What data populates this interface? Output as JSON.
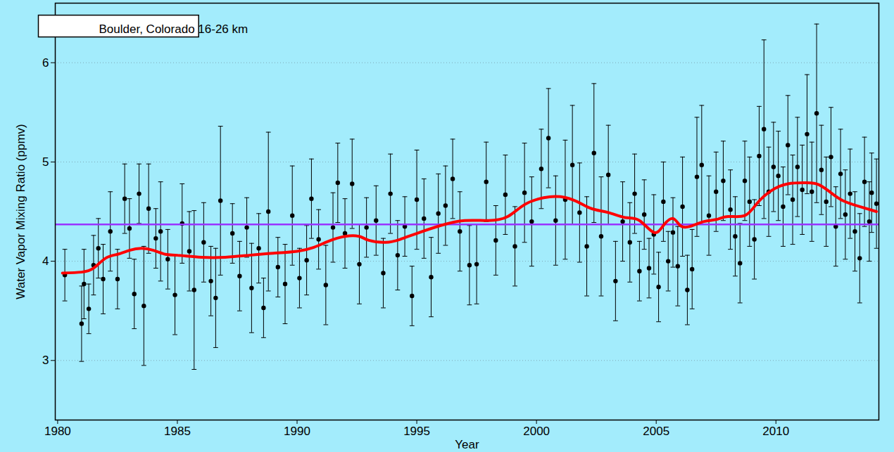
{
  "chart_data": {
    "type": "scatter",
    "title": "Boulder, Colorado 16-26 km",
    "x_label": "Year",
    "y_label": "Water Vapor Mixing Ratio (ppmv)",
    "xlim": [
      1979.9,
      2014.3
    ],
    "xticks": [
      1980,
      1985,
      1990,
      1995,
      2000,
      2005,
      2010
    ],
    "ylim": [
      2.4,
      6.6
    ],
    "yticks": [
      3,
      4,
      5,
      6
    ],
    "grid": true,
    "color": "#000000",
    "marker": "circle",
    "x": [
      1980.3,
      1981.0,
      1981.1,
      1981.3,
      1981.5,
      1981.7,
      1981.9,
      1982.2,
      1982.5,
      1982.8,
      1983.0,
      1983.2,
      1983.4,
      1983.6,
      1983.8,
      1984.1,
      1984.3,
      1984.6,
      1984.9,
      1985.2,
      1985.5,
      1985.7,
      1986.1,
      1986.4,
      1986.6,
      1986.8,
      1987.3,
      1987.6,
      1987.9,
      1988.1,
      1988.4,
      1988.6,
      1988.8,
      1989.2,
      1989.5,
      1989.8,
      1990.1,
      1990.4,
      1990.6,
      1990.9,
      1991.2,
      1991.5,
      1991.7,
      1992.0,
      1992.3,
      1992.6,
      1992.9,
      1993.3,
      1993.6,
      1993.9,
      1994.2,
      1994.5,
      1994.8,
      1995.0,
      1995.3,
      1995.6,
      1995.9,
      1996.2,
      1996.5,
      1996.8,
      1997.2,
      1997.5,
      1997.9,
      1998.3,
      1998.7,
      1999.1,
      1999.5,
      1999.8,
      2000.2,
      2000.5,
      2000.8,
      2001.2,
      2001.5,
      2001.8,
      2002.1,
      2002.4,
      2002.7,
      2003.0,
      2003.3,
      2003.6,
      2003.9,
      2004.1,
      2004.3,
      2004.5,
      2004.7,
      2004.9,
      2005.1,
      2005.3,
      2005.5,
      2005.7,
      2005.9,
      2006.1,
      2006.3,
      2006.5,
      2006.7,
      2006.9,
      2007.2,
      2007.5,
      2007.8,
      2008.1,
      2008.3,
      2008.5,
      2008.7,
      2008.9,
      2009.1,
      2009.3,
      2009.5,
      2009.7,
      2009.9,
      2010.1,
      2010.3,
      2010.5,
      2010.7,
      2010.9,
      2011.1,
      2011.3,
      2011.5,
      2011.7,
      2011.9,
      2012.1,
      2012.3,
      2012.5,
      2012.7,
      2012.9,
      2013.1,
      2013.3,
      2013.5,
      2013.7,
      2013.9,
      2014.0,
      2014.2
    ],
    "values": [
      3.86,
      3.37,
      3.77,
      3.52,
      3.96,
      4.13,
      3.82,
      4.3,
      3.82,
      4.63,
      4.33,
      3.67,
      4.68,
      3.55,
      4.53,
      4.23,
      4.3,
      4.02,
      3.66,
      4.38,
      4.1,
      3.71,
      4.19,
      3.8,
      3.63,
      4.61,
      4.28,
      3.85,
      4.34,
      3.73,
      4.13,
      3.53,
      4.5,
      3.94,
      3.77,
      4.46,
      3.83,
      4.01,
      4.63,
      4.22,
      3.76,
      4.34,
      4.79,
      4.28,
      4.78,
      3.97,
      4.34,
      4.41,
      3.88,
      4.68,
      4.06,
      4.35,
      3.65,
      4.62,
      4.43,
      3.84,
      4.48,
      4.56,
      4.83,
      4.3,
      3.96,
      3.97,
      4.8,
      4.21,
      4.67,
      4.15,
      4.69,
      4.4,
      4.93,
      5.24,
      4.41,
      4.62,
      4.97,
      4.49,
      4.15,
      5.09,
      4.25,
      4.87,
      3.8,
      4.4,
      4.19,
      4.68,
      3.9,
      4.47,
      3.93,
      4.27,
      3.74,
      4.6,
      4.0,
      4.29,
      3.95,
      4.55,
      3.71,
      3.92,
      4.85,
      4.97,
      4.46,
      4.7,
      4.81,
      4.52,
      4.25,
      3.98,
      4.81,
      4.6,
      4.22,
      5.06,
      5.33,
      4.7,
      4.95,
      4.86,
      4.55,
      5.17,
      4.62,
      4.95,
      4.72,
      5.28,
      4.7,
      5.49,
      4.92,
      4.6,
      5.05,
      4.35,
      4.88,
      4.47,
      4.68,
      4.3,
      4.03,
      4.8,
      4.4,
      4.69,
      4.58
    ],
    "error": [
      0.26,
      0.38,
      0.35,
      0.25,
      0.3,
      0.3,
      0.35,
      0.4,
      0.3,
      0.35,
      0.3,
      0.35,
      0.3,
      0.6,
      0.45,
      0.3,
      0.5,
      0.3,
      0.4,
      0.4,
      0.4,
      0.8,
      0.4,
      0.35,
      0.5,
      0.75,
      0.3,
      0.35,
      0.3,
      0.45,
      0.35,
      0.3,
      0.8,
      0.3,
      0.4,
      0.5,
      0.3,
      0.35,
      0.4,
      0.3,
      0.4,
      0.35,
      0.4,
      0.35,
      0.45,
      0.4,
      0.3,
      0.35,
      0.35,
      0.4,
      0.35,
      0.3,
      0.3,
      0.5,
      0.4,
      0.4,
      0.4,
      0.4,
      0.4,
      0.4,
      0.4,
      0.4,
      0.4,
      0.35,
      0.4,
      0.4,
      0.5,
      0.45,
      0.4,
      0.5,
      0.45,
      0.6,
      0.6,
      0.5,
      0.5,
      0.7,
      0.6,
      0.5,
      0.4,
      0.4,
      0.4,
      0.4,
      0.3,
      0.35,
      0.3,
      0.4,
      0.35,
      0.4,
      0.3,
      0.35,
      0.4,
      0.5,
      0.35,
      0.4,
      0.6,
      0.6,
      0.4,
      0.4,
      0.4,
      0.4,
      0.4,
      0.4,
      0.4,
      0.45,
      0.4,
      0.5,
      0.9,
      0.45,
      0.45,
      0.45,
      0.4,
      0.5,
      0.45,
      0.5,
      0.45,
      0.6,
      0.5,
      0.9,
      0.45,
      0.45,
      0.5,
      0.4,
      0.45,
      0.45,
      0.45,
      0.4,
      0.45,
      0.45,
      0.4,
      0.4,
      0.45
    ],
    "smooth": {
      "color": "#ff0000",
      "x": [
        1980.2,
        1981.0,
        1981.5,
        1982.0,
        1982.5,
        1983.0,
        1983.5,
        1984.0,
        1984.5,
        1985.0,
        1986.0,
        1987.0,
        1988.0,
        1989.0,
        1990.0,
        1990.7,
        1991.3,
        1992.0,
        1992.6,
        1993.0,
        1993.7,
        1994.3,
        1995.0,
        1996.0,
        1997.0,
        1998.0,
        1998.8,
        1999.5,
        2000.3,
        2001.0,
        2001.7,
        2002.3,
        2003.0,
        2003.7,
        2004.3,
        2004.9,
        2005.3,
        2005.7,
        2006.0,
        2006.4,
        2007.0,
        2007.5,
        2008.0,
        2008.7,
        2009.2,
        2009.8,
        2010.5,
        2011.3,
        2011.8,
        2012.3,
        2012.8,
        2013.5,
        2014.2
      ],
      "values": [
        3.88,
        3.89,
        3.93,
        4.03,
        4.07,
        4.11,
        4.13,
        4.11,
        4.07,
        4.06,
        4.04,
        4.04,
        4.06,
        4.08,
        4.1,
        4.14,
        4.2,
        4.25,
        4.25,
        4.21,
        4.19,
        4.22,
        4.28,
        4.36,
        4.41,
        4.41,
        4.45,
        4.57,
        4.64,
        4.65,
        4.6,
        4.53,
        4.49,
        4.44,
        4.41,
        4.29,
        4.36,
        4.43,
        4.36,
        4.35,
        4.4,
        4.42,
        4.45,
        4.46,
        4.58,
        4.71,
        4.78,
        4.79,
        4.77,
        4.69,
        4.61,
        4.55,
        4.5
      ]
    },
    "reference_line": {
      "value": 4.37,
      "color": "#9933ff"
    }
  }
}
